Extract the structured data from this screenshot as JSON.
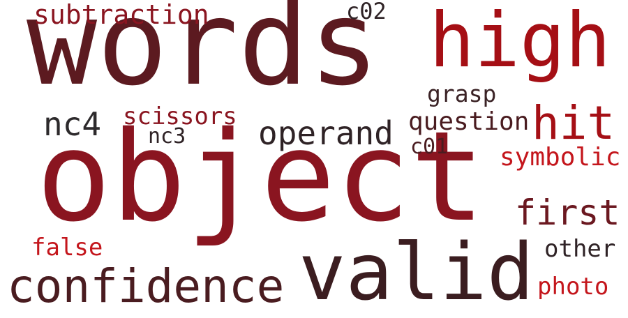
{
  "word_cloud": {
    "words": [
      {
        "id": "object",
        "text": "object",
        "color": "#8a1520"
      },
      {
        "id": "words",
        "text": "words",
        "color": "#5c1a20"
      },
      {
        "id": "high",
        "text": "high",
        "color": "#a50f15"
      },
      {
        "id": "valid",
        "text": "valid",
        "color": "#3b1d20"
      },
      {
        "id": "confidence",
        "text": "confidence",
        "color": "#4a1c20"
      },
      {
        "id": "hit",
        "text": "hit",
        "color": "#a50f15"
      },
      {
        "id": "operand",
        "text": "operand",
        "color": "#2f2326"
      },
      {
        "id": "first",
        "text": "first",
        "color": "#6b1820"
      },
      {
        "id": "nc4",
        "text": "nc4",
        "color": "#2d2a2c"
      },
      {
        "id": "subtraction",
        "text": "subtraction",
        "color": "#8a1520"
      },
      {
        "id": "scissors",
        "text": "scissors",
        "color": "#8a1520"
      },
      {
        "id": "question",
        "text": "question",
        "color": "#4a1c20"
      },
      {
        "id": "grasp",
        "text": "grasp",
        "color": "#3b2326"
      },
      {
        "id": "symbolic",
        "text": "symbolic",
        "color": "#c4161c"
      },
      {
        "id": "c02",
        "text": "c02",
        "color": "#2f2326"
      },
      {
        "id": "c01",
        "text": "c01",
        "color": "#4a1c20"
      },
      {
        "id": "nc3",
        "text": "nc3",
        "color": "#2f2326"
      },
      {
        "id": "false",
        "text": "false",
        "color": "#c4161c"
      },
      {
        "id": "other",
        "text": "other",
        "color": "#2f2326"
      },
      {
        "id": "photo",
        "text": "photo",
        "color": "#c4161c"
      }
    ]
  }
}
